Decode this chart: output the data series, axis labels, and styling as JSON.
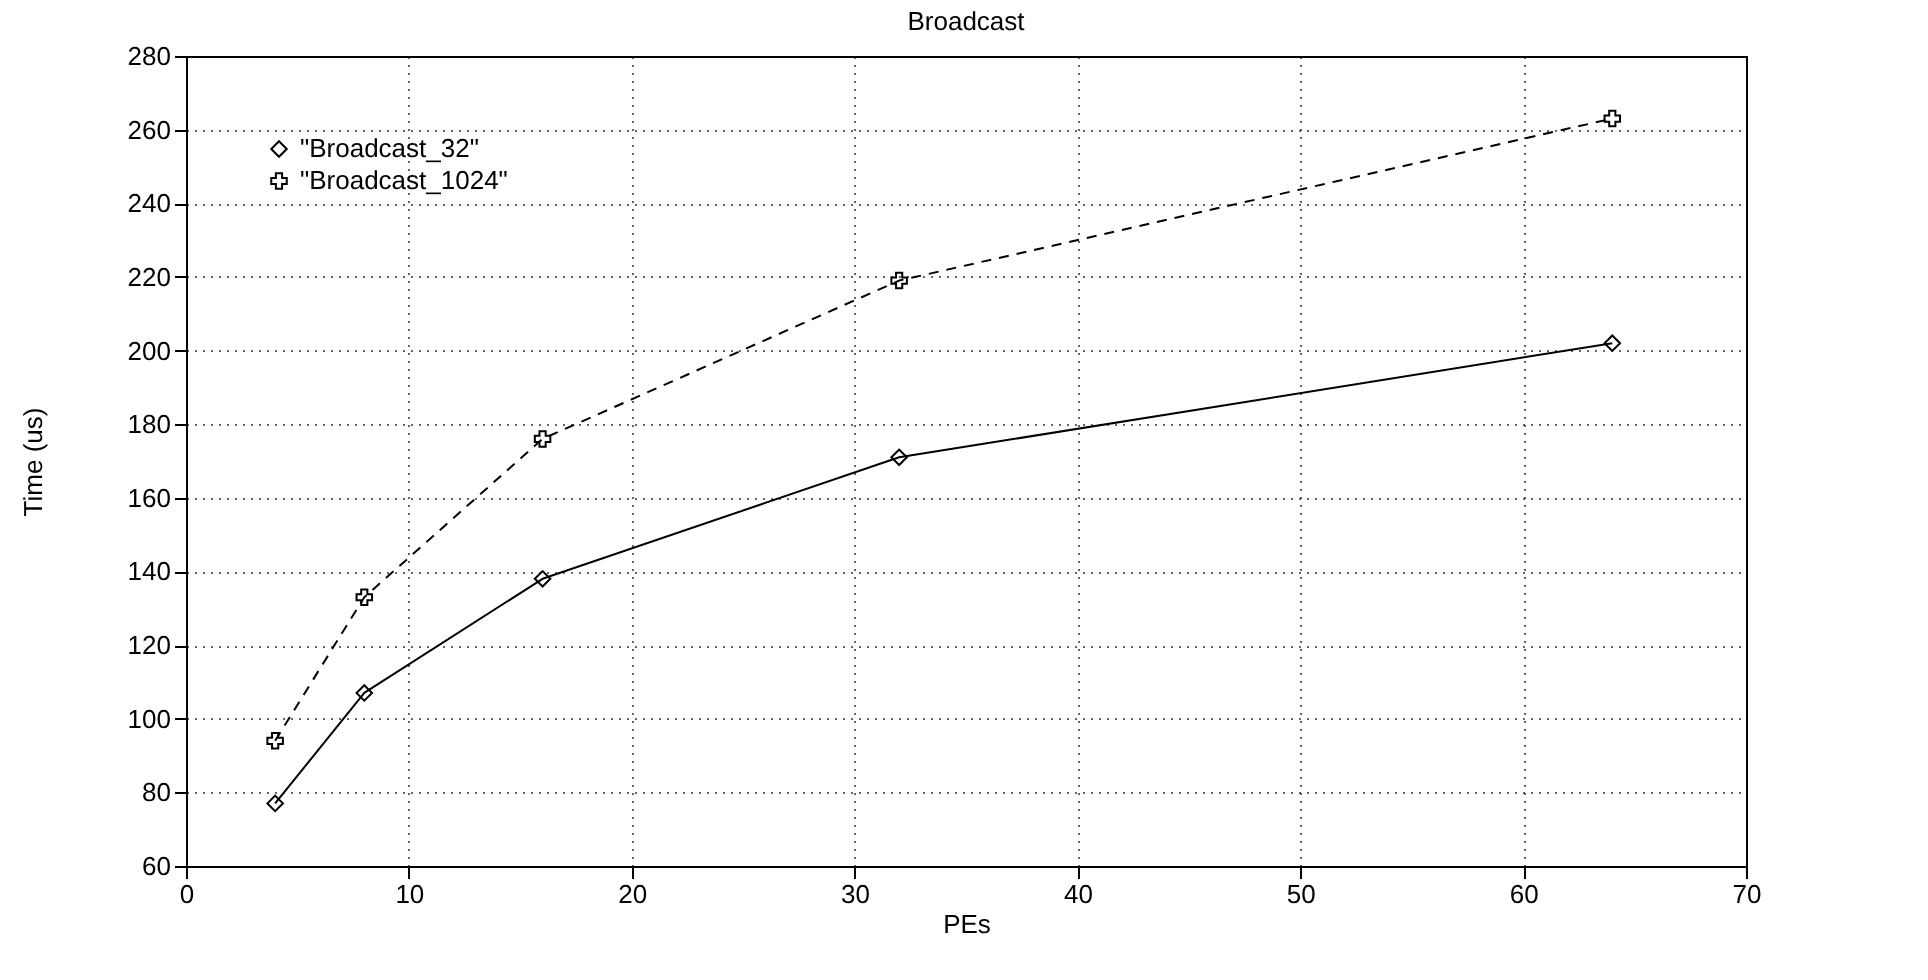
{
  "chart_data": {
    "type": "line",
    "title": "Broadcast",
    "xlabel": "PEs",
    "ylabel": "Time (us)",
    "x": [
      4,
      8,
      16,
      32,
      64
    ],
    "series": [
      {
        "name": "\"Broadcast_32\"",
        "color": "#000000",
        "values": [
          77,
          107,
          138,
          171,
          202
        ],
        "marker": "diamond",
        "line_style": "solid"
      },
      {
        "name": "\"Broadcast_1024\"",
        "color": "#000000",
        "values": [
          94,
          133,
          176,
          219,
          263
        ],
        "marker": "cross",
        "line_style": "dashed"
      }
    ],
    "xlim": [
      0,
      70
    ],
    "xticks": [
      0,
      10,
      20,
      30,
      40,
      50,
      60,
      70
    ],
    "ylim": [
      60,
      280
    ],
    "yticks": [
      60,
      80,
      100,
      120,
      140,
      160,
      180,
      200,
      220,
      240,
      260,
      280
    ],
    "grid": true,
    "legend": "top left"
  }
}
